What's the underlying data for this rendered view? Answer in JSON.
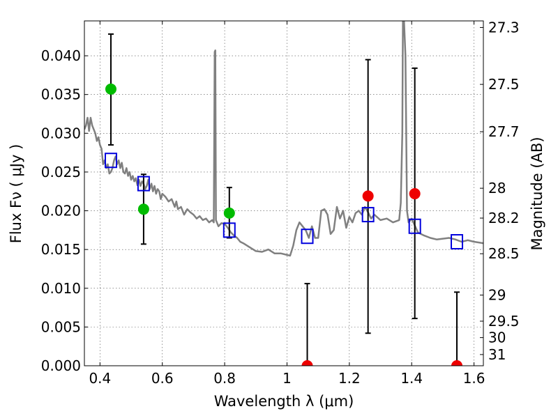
{
  "chart_data": {
    "type": "scatter",
    "xlabel": "Wavelength  λ (μm)",
    "ylabel": "Flux  Fν  ( μJy )",
    "ylabel_right": "Magnitude (AB)",
    "xlim": [
      0.35,
      1.63
    ],
    "ylim": [
      0.0,
      0.0445
    ],
    "grid": true,
    "x_ticks": [
      0.4,
      0.6,
      0.8,
      1.0,
      1.2,
      1.4,
      1.6
    ],
    "x_tick_labels": [
      "0.4",
      "0.6",
      "0.8",
      "1",
      "1.2",
      "1.4",
      "1.6"
    ],
    "y_ticks": [
      0.0,
      0.005,
      0.01,
      0.015,
      0.02,
      0.025,
      0.03,
      0.035,
      0.04
    ],
    "y_tick_labels": [
      "0.000",
      "0.005",
      "0.010",
      "0.015",
      "0.020",
      "0.025",
      "0.030",
      "0.035",
      "0.040"
    ],
    "right_axis_ticks": [
      27.3,
      27.5,
      27.7,
      28,
      28.2,
      28.5,
      29,
      29.5,
      30,
      31
    ],
    "right_axis_tick_labels": [
      "27.3",
      "27.5",
      "27.7",
      "28",
      "28.2",
      "28.5",
      "29",
      "29.5",
      "30",
      "31"
    ],
    "colors": {
      "model": "#808080",
      "green": "#00bb00",
      "red": "#ee0000",
      "blue": "#0000dd",
      "error": "#000000"
    },
    "model_spectrum": {
      "x": [
        0.35,
        0.355,
        0.36,
        0.365,
        0.37,
        0.375,
        0.38,
        0.385,
        0.39,
        0.395,
        0.4,
        0.405,
        0.41,
        0.415,
        0.42,
        0.425,
        0.43,
        0.435,
        0.44,
        0.445,
        0.45,
        0.455,
        0.46,
        0.465,
        0.47,
        0.475,
        0.48,
        0.485,
        0.49,
        0.495,
        0.5,
        0.505,
        0.51,
        0.515,
        0.52,
        0.525,
        0.53,
        0.535,
        0.54,
        0.545,
        0.55,
        0.555,
        0.56,
        0.565,
        0.57,
        0.575,
        0.58,
        0.585,
        0.59,
        0.595,
        0.6,
        0.61,
        0.62,
        0.63,
        0.64,
        0.645,
        0.65,
        0.66,
        0.67,
        0.68,
        0.69,
        0.7,
        0.71,
        0.72,
        0.73,
        0.74,
        0.75,
        0.76,
        0.765,
        0.768,
        0.77,
        0.772,
        0.775,
        0.78,
        0.79,
        0.8,
        0.81,
        0.82,
        0.83,
        0.84,
        0.85,
        0.86,
        0.88,
        0.9,
        0.92,
        0.94,
        0.96,
        0.98,
        1.0,
        1.01,
        1.02,
        1.03,
        1.04,
        1.05,
        1.06,
        1.07,
        1.08,
        1.09,
        1.1,
        1.11,
        1.12,
        1.13,
        1.14,
        1.15,
        1.16,
        1.17,
        1.18,
        1.19,
        1.2,
        1.21,
        1.22,
        1.23,
        1.24,
        1.25,
        1.26,
        1.27,
        1.28,
        1.3,
        1.32,
        1.34,
        1.36,
        1.365,
        1.37,
        1.372,
        1.375,
        1.38,
        1.385,
        1.39,
        1.4,
        1.42,
        1.44,
        1.46,
        1.48,
        1.5,
        1.52,
        1.54,
        1.56,
        1.58,
        1.6,
        1.63
      ],
      "y": [
        0.0305,
        0.031,
        0.032,
        0.0303,
        0.032,
        0.031,
        0.0305,
        0.03,
        0.029,
        0.0295,
        0.0285,
        0.028,
        0.026,
        0.0265,
        0.0255,
        0.026,
        0.0248,
        0.025,
        0.0255,
        0.0265,
        0.027,
        0.026,
        0.0265,
        0.0255,
        0.0262,
        0.025,
        0.0248,
        0.0255,
        0.0245,
        0.025,
        0.024,
        0.0245,
        0.0238,
        0.0242,
        0.0233,
        0.024,
        0.0232,
        0.0238,
        0.0235,
        0.0228,
        0.0232,
        0.024,
        0.0228,
        0.0235,
        0.0225,
        0.0232,
        0.0222,
        0.0228,
        0.0225,
        0.0215,
        0.0222,
        0.0218,
        0.0212,
        0.0215,
        0.0205,
        0.0212,
        0.0202,
        0.0205,
        0.0195,
        0.0202,
        0.0198,
        0.0195,
        0.019,
        0.0193,
        0.0188,
        0.019,
        0.0185,
        0.0188,
        0.0185,
        0.0405,
        0.0407,
        0.0188,
        0.0185,
        0.018,
        0.0184,
        0.0183,
        0.0178,
        0.0172,
        0.0168,
        0.0165,
        0.016,
        0.0158,
        0.0153,
        0.0148,
        0.0147,
        0.015,
        0.0145,
        0.0145,
        0.0143,
        0.0142,
        0.0155,
        0.0175,
        0.0185,
        0.018,
        0.0175,
        0.0165,
        0.018,
        0.0165,
        0.0165,
        0.02,
        0.0202,
        0.0195,
        0.017,
        0.0175,
        0.0205,
        0.019,
        0.02,
        0.0178,
        0.0192,
        0.0185,
        0.0197,
        0.02,
        0.0195,
        0.0205,
        0.0198,
        0.019,
        0.0195,
        0.0188,
        0.019,
        0.0185,
        0.0188,
        0.021,
        0.03,
        0.045,
        0.045,
        0.04,
        0.02,
        0.0185,
        0.019,
        0.0172,
        0.0168,
        0.0165,
        0.0163,
        0.0164,
        0.0165,
        0.0163,
        0.016,
        0.0162,
        0.016,
        0.0158
      ]
    },
    "series": [
      {
        "color_key": "green",
        "marker": "circle",
        "points": [
          {
            "x": 0.435,
            "y": 0.0357,
            "ylo": 0.0285,
            "yhi": 0.0428
          },
          {
            "x": 0.54,
            "y": 0.0202,
            "ylo": 0.0157,
            "yhi": 0.0247
          },
          {
            "x": 0.815,
            "y": 0.0197,
            "ylo": 0.0165,
            "yhi": 0.023
          }
        ]
      },
      {
        "color_key": "red",
        "marker": "circle",
        "points": [
          {
            "x": 1.065,
            "y": 0.0,
            "ylo": 0.0,
            "yhi": 0.0106
          },
          {
            "x": 1.26,
            "y": 0.0219,
            "ylo": 0.0042,
            "yhi": 0.0395
          },
          {
            "x": 1.41,
            "y": 0.0222,
            "ylo": 0.0061,
            "yhi": 0.0384
          },
          {
            "x": 1.545,
            "y": 0.0,
            "ylo": 0.0,
            "yhi": 0.0095
          }
        ]
      },
      {
        "color_key": "blue",
        "marker": "square",
        "points": [
          {
            "x": 0.435,
            "y": 0.0265
          },
          {
            "x": 0.54,
            "y": 0.0235
          },
          {
            "x": 0.815,
            "y": 0.0175
          },
          {
            "x": 1.065,
            "y": 0.0167
          },
          {
            "x": 1.26,
            "y": 0.0195
          },
          {
            "x": 1.41,
            "y": 0.018
          },
          {
            "x": 1.545,
            "y": 0.016
          }
        ]
      }
    ]
  }
}
